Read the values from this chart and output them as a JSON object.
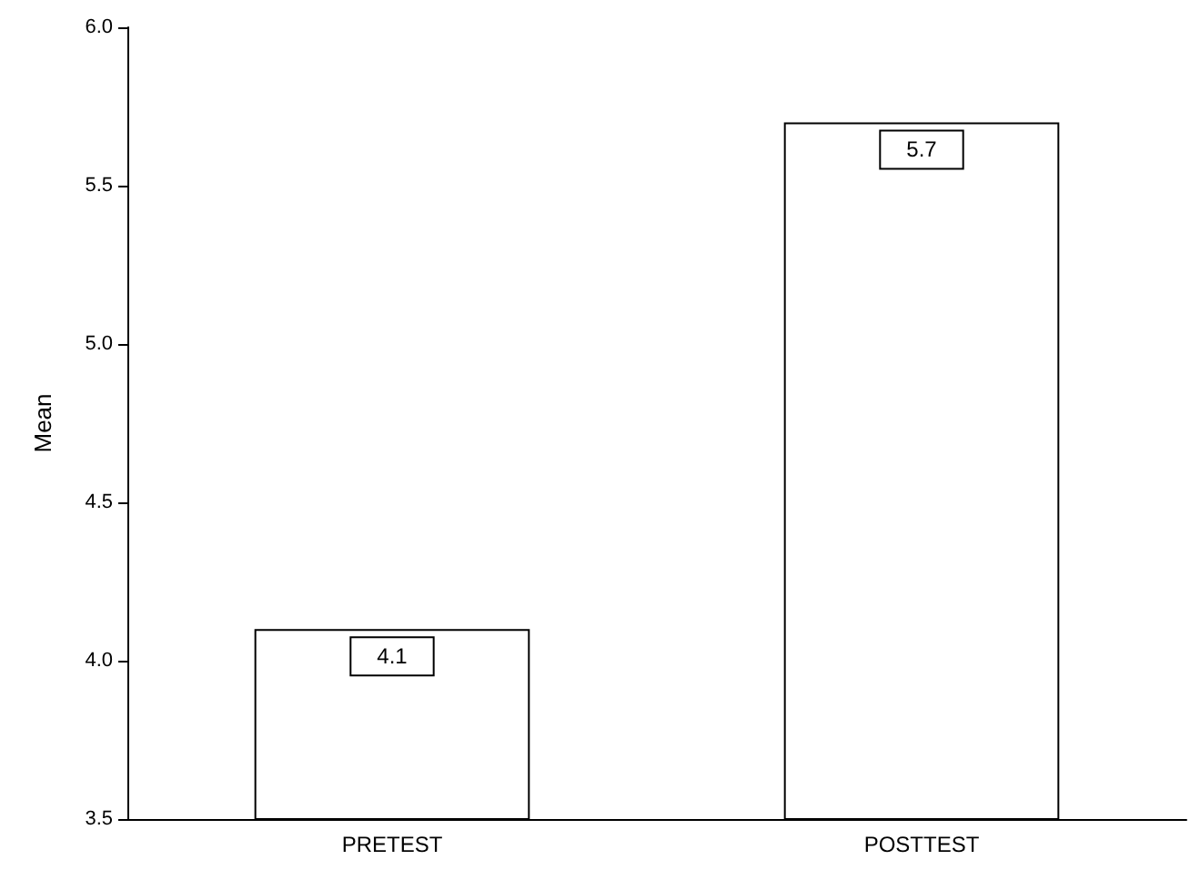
{
  "chart_data": {
    "type": "bar",
    "ylabel": "Mean",
    "categories": [
      "PRETEST",
      "POSTTEST"
    ],
    "values": [
      4.1,
      5.7
    ],
    "color": "#ffffff",
    "ylim": [
      3.5,
      6.0
    ],
    "yticks": [
      3.5,
      {
        "value": 4,
        "label": "4.0"
      },
      4.5,
      {
        "value": 5,
        "label": "5.0"
      },
      5.5,
      {
        "value": 6,
        "label": "6.0"
      }
    ],
    "grid": false,
    "data_labels": true
  }
}
